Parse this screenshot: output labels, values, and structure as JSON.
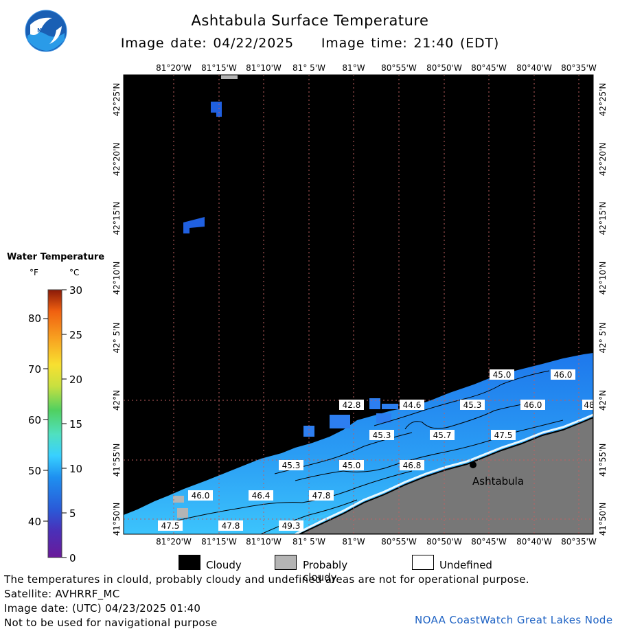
{
  "header": {
    "title": "Ashtabula Surface Temperature",
    "image_date": "Image date: 04/22/2025",
    "image_time": "Image time: 21:40 (EDT)",
    "logo_text": "NOAA"
  },
  "map": {
    "lon_labels": [
      "81°20'W",
      "81°15'W",
      "81°10'W",
      "81° 5'W",
      "81°W",
      "80°55'W",
      "80°50'W",
      "80°45'W",
      "80°40'W",
      "80°35'W"
    ],
    "lat_labels": [
      "42°25'N",
      "42°20'N",
      "42°15'N",
      "42°10'N",
      "42° 5'N",
      "42°N",
      "41°55'N",
      "41°50'N"
    ],
    "city": "Ashtabula",
    "contour_labels": [
      "42.8",
      "44.6",
      "45.0",
      "46.0",
      "45.3",
      "46.0",
      "45.3",
      "45.7",
      "47.5",
      "45.3",
      "45.0",
      "46.8",
      "46.0",
      "46.4",
      "47.8",
      "47.5",
      "47.8",
      "49.3",
      "48"
    ],
    "colors": {
      "cloud": "#000000",
      "land": "#777777",
      "probably_cloudy": "#b4b4b4",
      "water_cold": "#1e6ee6",
      "water_warm": "#3cc8ff"
    }
  },
  "legend": {
    "title": "Water Temperature",
    "unit_f": "°F",
    "unit_c": "°C",
    "f_ticks": [
      "80",
      "70",
      "60",
      "50",
      "40"
    ],
    "c_ticks": [
      "30",
      "25",
      "20",
      "15",
      "10",
      "5",
      "0"
    ],
    "scale_colors": [
      "#6a1a9a",
      "#3a3ac8",
      "#1e78f0",
      "#38c8ff",
      "#50e0c8",
      "#50d060",
      "#c8e040",
      "#f8e030",
      "#f8a020",
      "#f06010",
      "#c03010",
      "#8a1a08"
    ]
  },
  "keys": {
    "cloudy": "Cloudy",
    "probably_cloudy": "Probably cloudy",
    "undefined": "Undefined"
  },
  "footer": {
    "line1": "The temperatures in clould, probably cloudy and undefined areas are not for operational purpose.",
    "line2": "Satellite: AVHRRF_MC",
    "line3": "Image date: (UTC) 04/23/2025  01:40",
    "line4": "Not to be used for navigational purpose",
    "credit": "NOAA CoastWatch Great Lakes Node"
  }
}
